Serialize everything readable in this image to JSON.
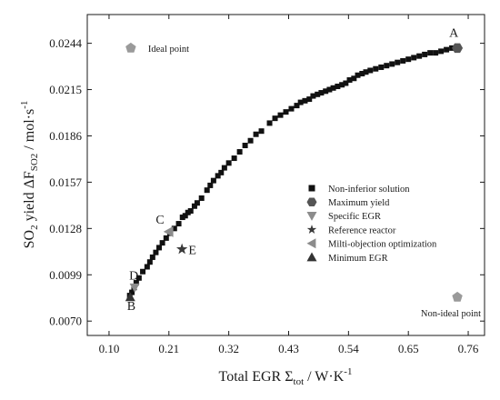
{
  "chart_data": {
    "type": "scatter",
    "title": "",
    "xlabel": {
      "main": "Total EGR Σ",
      "sub": "tot",
      "unit": " / W·K",
      "sup": "-1"
    },
    "ylabel": {
      "main": "SO",
      "sub1": "2",
      "mid": " yield ΔF",
      "sub2": "SO2",
      "unit": " / mol·s",
      "sup": "-1"
    },
    "xlim": [
      0.06,
      0.79
    ],
    "ylim": [
      0.0061,
      0.0262
    ],
    "xticks": [
      0.1,
      0.21,
      0.32,
      0.43,
      0.54,
      0.65,
      0.76
    ],
    "xtick_labels": [
      "0.10",
      "0.21",
      "0.32",
      "0.43",
      "0.54",
      "0.65",
      "0.76"
    ],
    "yticks": [
      0.007,
      0.0099,
      0.0128,
      0.0157,
      0.0186,
      0.0215,
      0.0244
    ],
    "ytick_labels": [
      "0.0070",
      "0.0099",
      "0.0128",
      "0.0157",
      "0.0186",
      "0.0215",
      "0.0244"
    ],
    "legend_position": "center-right",
    "series": [
      {
        "name": "Non-inferior solution",
        "marker": "square",
        "color": "#111111",
        "x": [
          0.138,
          0.142,
          0.146,
          0.15,
          0.155,
          0.162,
          0.17,
          0.175,
          0.18,
          0.186,
          0.192,
          0.198,
          0.205,
          0.212,
          0.22,
          0.228,
          0.235,
          0.24,
          0.245,
          0.25,
          0.257,
          0.262,
          0.27,
          0.28,
          0.286,
          0.292,
          0.3,
          0.306,
          0.312,
          0.32,
          0.33,
          0.34,
          0.35,
          0.36,
          0.37,
          0.38,
          0.395,
          0.405,
          0.415,
          0.425,
          0.435,
          0.445,
          0.452,
          0.46,
          0.468,
          0.475,
          0.483,
          0.49,
          0.498,
          0.505,
          0.512,
          0.52,
          0.528,
          0.535,
          0.542,
          0.55,
          0.557,
          0.565,
          0.572,
          0.58,
          0.59,
          0.6,
          0.61,
          0.62,
          0.63,
          0.64,
          0.65,
          0.66,
          0.67,
          0.68,
          0.69,
          0.7,
          0.71,
          0.72,
          0.73
        ],
        "y": [
          0.0086,
          0.0088,
          0.0091,
          0.0094,
          0.0097,
          0.0101,
          0.0104,
          0.0107,
          0.011,
          0.0113,
          0.0116,
          0.0119,
          0.0122,
          0.0125,
          0.0128,
          0.0131,
          0.0135,
          0.0136,
          0.0138,
          0.0139,
          0.0142,
          0.0144,
          0.0147,
          0.0152,
          0.0155,
          0.0158,
          0.0161,
          0.0163,
          0.0166,
          0.0169,
          0.0172,
          0.0176,
          0.018,
          0.0183,
          0.0187,
          0.0189,
          0.0194,
          0.0197,
          0.0199,
          0.0201,
          0.0203,
          0.0205,
          0.0207,
          0.0208,
          0.0209,
          0.0211,
          0.0212,
          0.0213,
          0.0214,
          0.0215,
          0.0216,
          0.0217,
          0.0218,
          0.0219,
          0.0221,
          0.0222,
          0.0224,
          0.0225,
          0.0226,
          0.0227,
          0.0228,
          0.0229,
          0.023,
          0.0231,
          0.0232,
          0.0233,
          0.0234,
          0.0235,
          0.0236,
          0.0237,
          0.0238,
          0.0238,
          0.0239,
          0.024,
          0.0241
        ]
      },
      {
        "name": "Maximum yield",
        "marker": "hexagon",
        "color": "#555555",
        "x": [
          0.74
        ],
        "y": [
          0.0241
        ]
      },
      {
        "name": "Specific EGR",
        "marker": "triangle-down",
        "color": "#8c8c8c",
        "x": [
          0.147
        ],
        "y": [
          0.0091
        ]
      },
      {
        "name": "Reference reactor",
        "marker": "star",
        "color": "#3a3a3a",
        "x": [
          0.234
        ],
        "y": [
          0.0115
        ]
      },
      {
        "name": "Milti-objection optimization",
        "marker": "triangle-left",
        "color": "#8c8c8c",
        "x": [
          0.21
        ],
        "y": [
          0.0126
        ]
      },
      {
        "name": "Minimum EGR",
        "marker": "triangle-up",
        "color": "#333333",
        "x": [
          0.139
        ],
        "y": [
          0.0085
        ]
      }
    ],
    "extra_points": [
      {
        "name": "Ideal point",
        "marker": "pentagon",
        "color": "#9a9a9a",
        "x": 0.14,
        "y": 0.0241
      },
      {
        "name": "Non-ideal point",
        "marker": "pentagon",
        "color": "#9a9a9a",
        "x": 0.74,
        "y": 0.0085
      }
    ],
    "point_labels": [
      {
        "text": "A",
        "x": 0.725,
        "y": 0.0248
      },
      {
        "text": "C",
        "x": 0.186,
        "y": 0.0131
      },
      {
        "text": "E",
        "x": 0.246,
        "y": 0.0112
      },
      {
        "text": "D",
        "x": 0.137,
        "y": 0.0096
      },
      {
        "text": "B",
        "x": 0.133,
        "y": 0.0077
      }
    ]
  }
}
